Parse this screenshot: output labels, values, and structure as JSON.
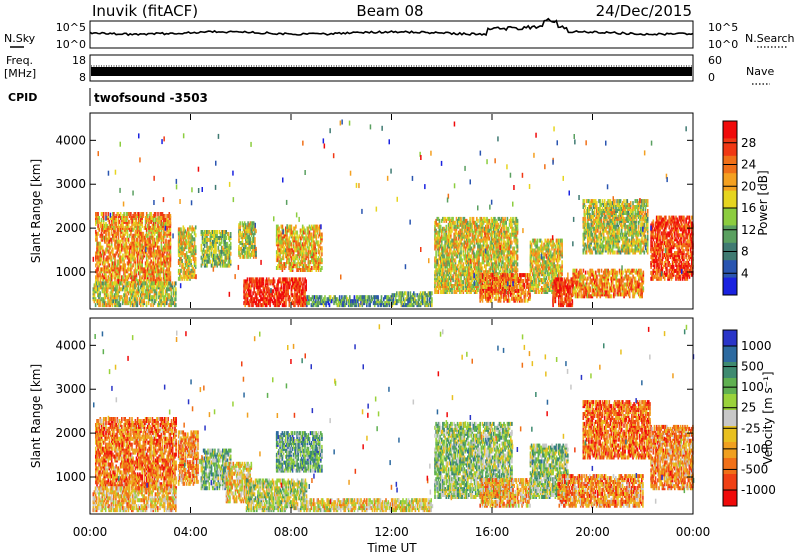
{
  "header": {
    "site": "Inuvik (fitACF)",
    "beam": "Beam 08",
    "date": "24/Dec/2015"
  },
  "noise": {
    "left_label": "N.Sky",
    "right_label": "N.Search",
    "left_ticks": [
      "10^5",
      "10^0"
    ],
    "right_ticks": [
      "10^5",
      "10^0"
    ]
  },
  "freq": {
    "left_label_1": "Freq.",
    "left_label_2": "[MHz]",
    "right_label": "Nave",
    "left_ticks": [
      "18",
      "8"
    ],
    "right_ticks": [
      "60",
      "0"
    ]
  },
  "cpid": {
    "label": "CPID",
    "program": "twofsound  -3503"
  },
  "x_axis": {
    "label": "Time UT",
    "ticks": [
      "00:00",
      "04:00",
      "08:00",
      "12:00",
      "16:00",
      "20:00",
      "00:00"
    ]
  },
  "colors": {
    "power_scale": [
      "#1a22e0",
      "#2a55b0",
      "#3f7a72",
      "#5aa060",
      "#8ccd3f",
      "#e6d520",
      "#f4a020",
      "#f07018",
      "#f03814",
      "#f00a0a"
    ],
    "velocity_scale": [
      "#2a35c8",
      "#2d6aa0",
      "#3e8a70",
      "#5fb050",
      "#9ad23a",
      "#c8c8c8",
      "#e8c020",
      "#f0a020",
      "#f07018",
      "#f04014",
      "#f00a0a"
    ]
  },
  "chart_data": [
    {
      "type": "heatmap",
      "panel": "power",
      "ylabel": "Slant Range [km]",
      "xlabel": "",
      "x_range_hours": [
        0,
        24
      ],
      "ylim": [
        180,
        4600
      ],
      "yticks": [
        1000,
        2000,
        3000,
        4000
      ],
      "colorbar": {
        "label": "Power [dB]",
        "range": [
          0,
          32
        ],
        "ticks": [
          4,
          8,
          12,
          16,
          20,
          24,
          28
        ]
      },
      "regions": [
        {
          "t0": 0.2,
          "t1": 3.2,
          "r0": 700,
          "r1": 2300,
          "level": 0.68
        },
        {
          "t0": 0.1,
          "t1": 3.4,
          "r0": 200,
          "r1": 700,
          "level": 0.5
        },
        {
          "t0": 3.5,
          "t1": 4.2,
          "r0": 800,
          "r1": 2000,
          "level": 0.55
        },
        {
          "t0": 4.4,
          "t1": 5.6,
          "r0": 1100,
          "r1": 1900,
          "level": 0.45
        },
        {
          "t0": 5.9,
          "t1": 6.6,
          "r0": 1300,
          "r1": 2100,
          "level": 0.5
        },
        {
          "t0": 6.1,
          "t1": 8.6,
          "r0": 200,
          "r1": 800,
          "level": 0.9
        },
        {
          "t0": 7.4,
          "t1": 9.2,
          "r0": 1000,
          "r1": 2000,
          "level": 0.62
        },
        {
          "t0": 8.6,
          "t1": 12.0,
          "r0": 200,
          "r1": 400,
          "level": 0.3
        },
        {
          "t0": 12.0,
          "t1": 13.6,
          "r0": 200,
          "r1": 500,
          "level": 0.35
        },
        {
          "t0": 13.7,
          "t1": 17.0,
          "r0": 500,
          "r1": 2200,
          "level": 0.55
        },
        {
          "t0": 15.5,
          "t1": 17.5,
          "r0": 300,
          "r1": 900,
          "level": 0.75
        },
        {
          "t0": 17.5,
          "t1": 18.8,
          "r0": 500,
          "r1": 1700,
          "level": 0.55
        },
        {
          "t0": 18.4,
          "t1": 19.2,
          "r0": 200,
          "r1": 800,
          "level": 0.9
        },
        {
          "t0": 19.2,
          "t1": 22.0,
          "r0": 400,
          "r1": 1000,
          "level": 0.7
        },
        {
          "t0": 19.6,
          "t1": 22.2,
          "r0": 1400,
          "r1": 2600,
          "level": 0.5
        },
        {
          "t0": 22.3,
          "t1": 24.0,
          "r0": 800,
          "r1": 2200,
          "level": 0.85
        }
      ]
    },
    {
      "type": "heatmap",
      "panel": "velocity",
      "ylabel": "Slant Range [km]",
      "xlabel": "Time UT",
      "x_range_hours": [
        0,
        24
      ],
      "ylim": [
        180,
        4600
      ],
      "yticks": [
        1000,
        2000,
        3000,
        4000
      ],
      "colorbar": {
        "label": "Velocity [m s⁻¹]",
        "tick_labels": [
          "1000",
          "500",
          "100",
          "25",
          "-25",
          "-100",
          "-500",
          "-1000"
        ]
      },
      "regions": [
        {
          "t0": 0.2,
          "t1": 3.4,
          "r0": 700,
          "r1": 2300,
          "level": 0.75
        },
        {
          "t0": 0.1,
          "t1": 3.4,
          "r0": 200,
          "r1": 700,
          "level": 0.62
        },
        {
          "t0": 3.5,
          "t1": 4.3,
          "r0": 800,
          "r1": 2000,
          "level": 0.7
        },
        {
          "t0": 4.4,
          "t1": 5.6,
          "r0": 700,
          "r1": 1600,
          "level": 0.35
        },
        {
          "t0": 5.4,
          "t1": 6.4,
          "r0": 400,
          "r1": 1300,
          "level": 0.6
        },
        {
          "t0": 6.2,
          "t1": 8.6,
          "r0": 200,
          "r1": 900,
          "level": 0.45
        },
        {
          "t0": 7.4,
          "t1": 9.2,
          "r0": 1100,
          "r1": 2000,
          "level": 0.3
        },
        {
          "t0": 8.6,
          "t1": 13.6,
          "r0": 200,
          "r1": 450,
          "level": 0.55
        },
        {
          "t0": 13.7,
          "t1": 16.8,
          "r0": 500,
          "r1": 2200,
          "level": 0.4
        },
        {
          "t0": 15.5,
          "t1": 17.5,
          "r0": 300,
          "r1": 900,
          "level": 0.65
        },
        {
          "t0": 17.5,
          "t1": 19.0,
          "r0": 500,
          "r1": 1700,
          "level": 0.4
        },
        {
          "t0": 18.6,
          "t1": 22.0,
          "r0": 300,
          "r1": 1000,
          "level": 0.72
        },
        {
          "t0": 19.6,
          "t1": 22.3,
          "r0": 1400,
          "r1": 2700,
          "level": 0.78
        },
        {
          "t0": 22.3,
          "t1": 24.0,
          "r0": 700,
          "r1": 2100,
          "level": 0.7
        }
      ]
    }
  ]
}
